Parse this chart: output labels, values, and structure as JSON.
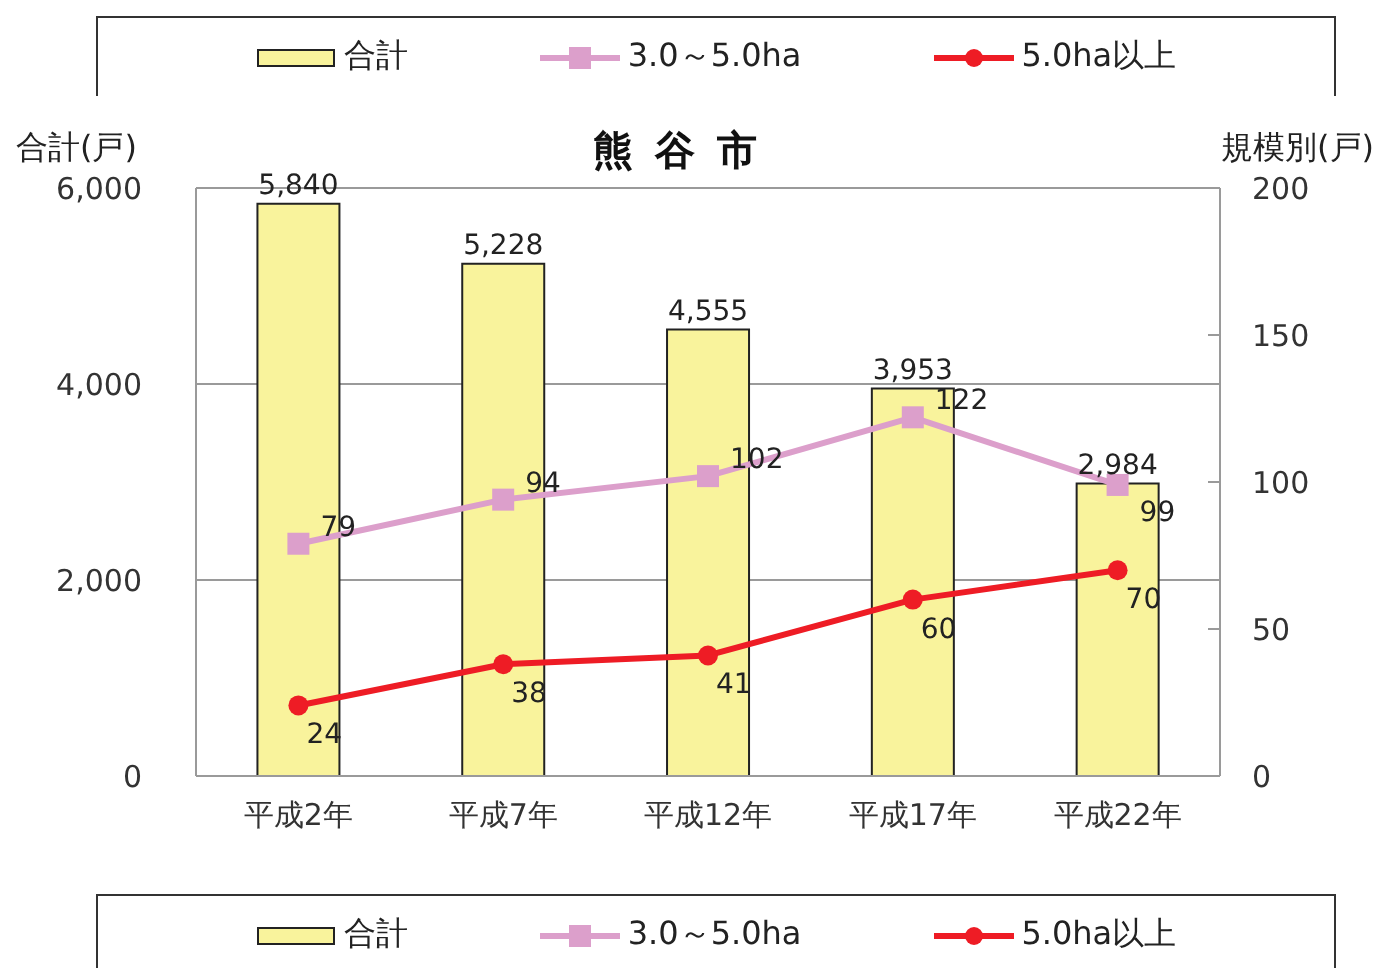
{
  "chart_data": {
    "type": "bar",
    "title": "熊谷市",
    "ylabel": "合計(戸)",
    "y2label": "規模別(戸)",
    "categories": [
      "平成2年",
      "平成7年",
      "平成12年",
      "平成17年",
      "平成22年"
    ],
    "series": [
      {
        "name": "合計",
        "color": "#f9f39c",
        "values": [
          5840,
          5228,
          4555,
          3953,
          2984
        ],
        "value_labels": [
          "5,840",
          "5,228",
          "4,555",
          "3,953",
          "2,984"
        ]
      },
      {
        "name": "3.0～5.0ha",
        "type": "line",
        "axis": "y2",
        "marker": "square",
        "color": "#dc9fcb",
        "values": [
          79,
          94,
          102,
          122,
          99
        ],
        "value_labels": [
          "79",
          "94",
          "102",
          "122",
          "99"
        ]
      },
      {
        "name": "5.0ha以上",
        "type": "line",
        "axis": "y2",
        "marker": "circle",
        "color": "#ee1c25",
        "values": [
          24,
          38,
          41,
          60,
          70
        ],
        "value_labels": [
          "24",
          "38",
          "41",
          "60",
          "70"
        ]
      }
    ],
    "ylim": [
      0,
      6000
    ],
    "yticks": [
      0,
      {
        "value": 2000,
        "label": "2,000"
      },
      {
        "value": 4000,
        "label": "4,000"
      },
      {
        "value": 6000,
        "label": "6,000"
      }
    ],
    "y2lim": [
      0,
      200
    ],
    "y2ticks": [
      0,
      50,
      100,
      150,
      200
    ],
    "grid": "y",
    "legend": [
      "top",
      "bottom"
    ],
    "line_style": "solid"
  }
}
